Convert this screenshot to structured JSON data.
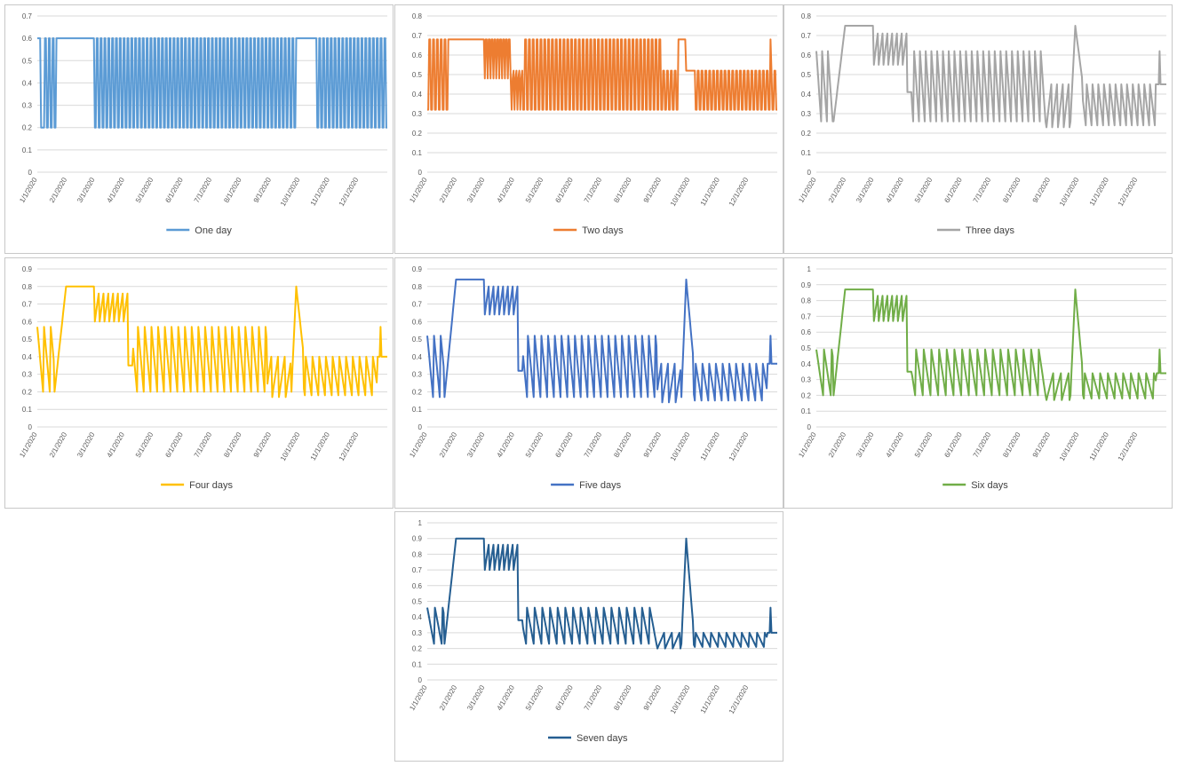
{
  "x_tick_labels": [
    "1/1/2020",
    "2/1/2020",
    "3/1/2020",
    "4/1/2020",
    "5/1/2020",
    "6/1/2020",
    "7/1/2020",
    "8/1/2020",
    "9/1/2020",
    "10/1/2020",
    "11/1/2020",
    "12/1/2020"
  ],
  "chart_data": [
    {
      "type": "line",
      "title": "",
      "legend": "One day",
      "color": "#5b9bd5",
      "ylim": [
        0,
        0.7
      ],
      "ystep": 0.1,
      "yticks": [
        "0",
        "0.1",
        "0.2",
        "0.3",
        "0.4",
        "0.5",
        "0.6",
        "0.7"
      ],
      "legend_position": "bottom",
      "min_value": 0.2,
      "max_value": 0.6,
      "pattern": "square wave alternating between 0.2 and 0.6; held at 0.6 from late Jan to early Mar"
    },
    {
      "type": "line",
      "title": "",
      "legend": "Two days",
      "color": "#ed7d31",
      "ylim": [
        0,
        0.8
      ],
      "ystep": 0.1,
      "yticks": [
        "0",
        "0.1",
        "0.2",
        "0.3",
        "0.4",
        "0.5",
        "0.6",
        "0.7",
        "0.8"
      ],
      "legend_position": "bottom",
      "min_value": 0.32,
      "max_value": 0.68,
      "pattern": "oscillates between 0.32 and 0.68; plateau at 0.68 late Jan to end Feb"
    },
    {
      "type": "line",
      "title": "",
      "legend": "Three days",
      "color": "#a5a5a5",
      "ylim": [
        0,
        0.8
      ],
      "ystep": 0.1,
      "yticks": [
        "0",
        "0.1",
        "0.2",
        "0.3",
        "0.4",
        "0.5",
        "0.6",
        "0.7",
        "0.8"
      ],
      "legend_position": "bottom",
      "min_value": 0.26,
      "max_value": 0.75,
      "pattern": "oscillates 0.26-0.62; plateau 0.75 in Feb; peak 0.75 early Oct"
    },
    {
      "type": "line",
      "title": "",
      "legend": "Four days",
      "color": "#ffc000",
      "ylim": [
        0,
        0.9
      ],
      "ystep": 0.1,
      "yticks": [
        "0",
        "0.1",
        "0.2",
        "0.3",
        "0.4",
        "0.5",
        "0.6",
        "0.7",
        "0.8",
        "0.9"
      ],
      "legend_position": "bottom",
      "min_value": 0.2,
      "max_value": 0.8,
      "pattern": "oscillates 0.2-0.57; plateau 0.8 in Feb; peak 0.8 late Sep"
    },
    {
      "type": "line",
      "title": "",
      "legend": "Five days",
      "color": "#4472c4",
      "ylim": [
        0,
        0.9
      ],
      "ystep": 0.1,
      "yticks": [
        "0",
        "0.1",
        "0.2",
        "0.3",
        "0.4",
        "0.5",
        "0.6",
        "0.7",
        "0.8",
        "0.9"
      ],
      "legend_position": "bottom",
      "min_value": 0.17,
      "max_value": 0.84,
      "pattern": "oscillates 0.17-0.52; plateau 0.84 in Feb; peak 0.84 early Oct"
    },
    {
      "type": "line",
      "title": "",
      "legend": "Six days",
      "color": "#70ad47",
      "ylim": [
        0,
        1
      ],
      "ystep": 0.1,
      "yticks": [
        "0",
        "0.1",
        "0.2",
        "0.3",
        "0.4",
        "0.5",
        "0.6",
        "0.7",
        "0.8",
        "0.9",
        "1"
      ],
      "legend_position": "bottom",
      "min_value": 0.14,
      "max_value": 0.87,
      "pattern": "oscillates 0.2-0.49; plateau 0.87 in Feb; peak 0.87 early Oct"
    },
    {
      "type": "line",
      "title": "",
      "legend": "Seven days",
      "color": "#255e91",
      "ylim": [
        0,
        1
      ],
      "ystep": 0.1,
      "yticks": [
        "0",
        "0.1",
        "0.2",
        "0.3",
        "0.4",
        "0.5",
        "0.6",
        "0.7",
        "0.8",
        "0.9",
        "1"
      ],
      "legend_position": "bottom",
      "min_value": 0.16,
      "max_value": 0.9,
      "pattern": "oscillates 0.23-0.46; plateau 0.9 in Feb; peak 0.9 early Oct"
    }
  ]
}
